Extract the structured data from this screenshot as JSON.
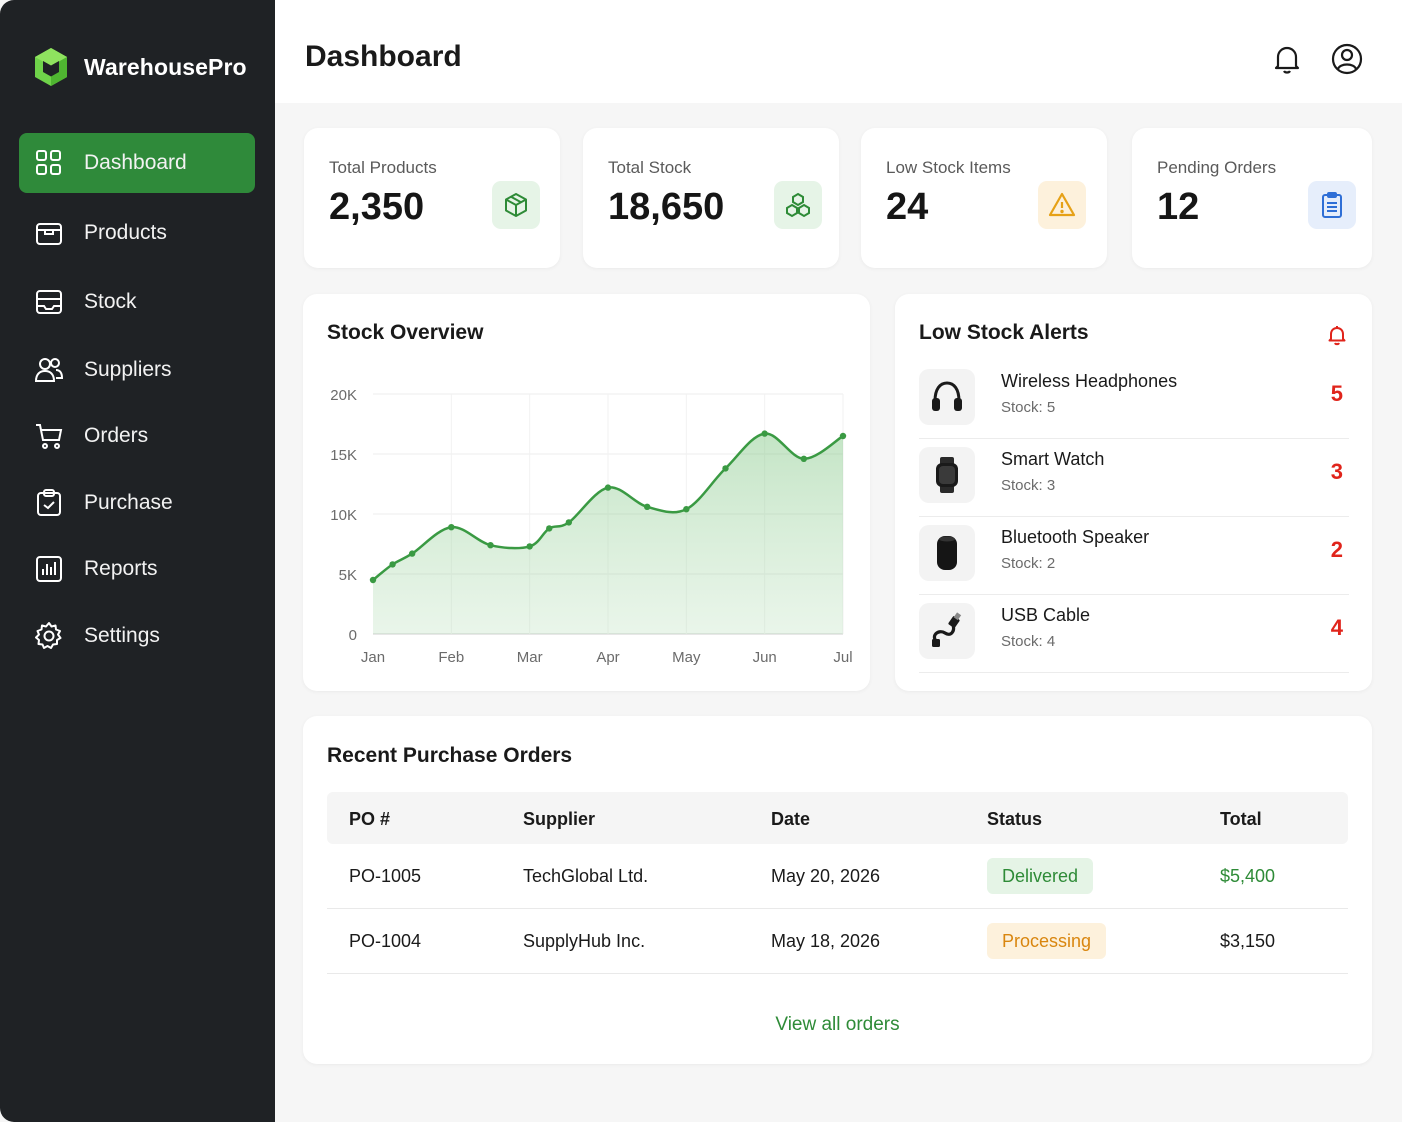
{
  "app": {
    "name": "WarehousePro"
  },
  "sidebar": {
    "items": [
      {
        "label": "Dashboard",
        "icon": "grid-icon",
        "active": true
      },
      {
        "label": "Products",
        "icon": "box-icon"
      },
      {
        "label": "Stock",
        "icon": "inbox-icon"
      },
      {
        "label": "Suppliers",
        "icon": "users-icon"
      },
      {
        "label": "Orders",
        "icon": "cart-icon"
      },
      {
        "label": "Purchase",
        "icon": "clipboard-icon"
      },
      {
        "label": "Reports",
        "icon": "bar-chart-icon"
      },
      {
        "label": "Settings",
        "icon": "gear-icon"
      }
    ]
  },
  "header": {
    "title": "Dashboard",
    "icons": [
      "bell-icon",
      "user-circle-icon"
    ]
  },
  "stats": [
    {
      "label": "Total Products",
      "value": "2,350",
      "icon": "cube-icon",
      "color": "#2e8b37",
      "bg": "#e6f4e7"
    },
    {
      "label": "Total Stock",
      "value": "18,650",
      "icon": "boxes-icon",
      "color": "#2e8b37",
      "bg": "#e6f4e7"
    },
    {
      "label": "Low Stock Items",
      "value": "24",
      "icon": "warning-icon",
      "color": "#e6a117",
      "bg": "#fdf1dc"
    },
    {
      "label": "Pending Orders",
      "value": "12",
      "icon": "clipboard-list-icon",
      "color": "#2f6fd6",
      "bg": "#e6eefb"
    }
  ],
  "stock_overview": {
    "title": "Stock Overview",
    "chart_data": {
      "type": "area",
      "categories": [
        "Jan",
        "Feb",
        "Mar",
        "Apr",
        "May",
        "Jun",
        "Jul"
      ],
      "yticks": [
        "20K",
        "15K",
        "10K",
        "5K",
        "0"
      ],
      "ylim": [
        0,
        20000
      ],
      "grid": true,
      "color": "#3a9a43",
      "points": [
        {
          "x": 0.0,
          "y": 4500
        },
        {
          "x": 0.25,
          "y": 5800
        },
        {
          "x": 0.5,
          "y": 6700
        },
        {
          "x": 1.0,
          "y": 8900
        },
        {
          "x": 1.5,
          "y": 7400
        },
        {
          "x": 2.0,
          "y": 7300
        },
        {
          "x": 2.25,
          "y": 8800
        },
        {
          "x": 2.5,
          "y": 9300
        },
        {
          "x": 3.0,
          "y": 12200
        },
        {
          "x": 3.5,
          "y": 10600
        },
        {
          "x": 4.0,
          "y": 10400
        },
        {
          "x": 4.5,
          "y": 13800
        },
        {
          "x": 5.0,
          "y": 16700
        },
        {
          "x": 5.5,
          "y": 14600
        },
        {
          "x": 6.0,
          "y": 16500
        }
      ]
    }
  },
  "low_stock": {
    "title": "Low Stock Alerts",
    "items": [
      {
        "name": "Wireless Headphones",
        "stock": "Stock: 5",
        "count": "5",
        "icon": "headphones-icon"
      },
      {
        "name": "Smart Watch",
        "stock": "Stock: 3",
        "count": "3",
        "icon": "watch-icon"
      },
      {
        "name": "Bluetooth Speaker",
        "stock": "Stock: 2",
        "count": "2",
        "icon": "speaker-icon"
      },
      {
        "name": "USB Cable",
        "stock": "Stock: 4",
        "count": "4",
        "icon": "cable-icon"
      }
    ]
  },
  "orders": {
    "title": "Recent Purchase Orders",
    "columns": [
      "PO #",
      "Supplier",
      "Date",
      "Status",
      "Total"
    ],
    "rows": [
      {
        "po": "PO-1005",
        "supplier": "TechGlobal Ltd.",
        "date": "May 20, 2026",
        "status": "Delivered",
        "total": "$5,400"
      },
      {
        "po": "PO-1004",
        "supplier": "SupplyHub Inc.",
        "date": "May 18, 2026",
        "status": "Processing",
        "total": "$3,150"
      }
    ],
    "view_all": "View all orders"
  }
}
